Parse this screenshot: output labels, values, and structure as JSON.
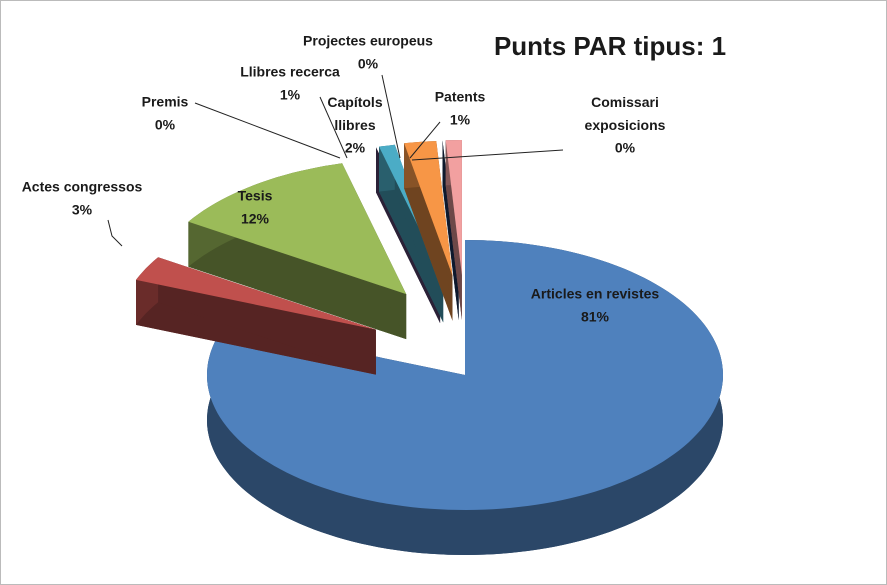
{
  "chart_data": {
    "type": "pie",
    "title": "Punts PAR tipus: 1",
    "categories": [
      "Articles en revistes",
      "Actes congressos",
      "Tesis",
      "Premis",
      "Llibres recerca",
      "Capítols llibres",
      "Projectes europeus",
      "Patents",
      "Comissari exposicions"
    ],
    "values": [
      81,
      3,
      12,
      0,
      1,
      2,
      0,
      1,
      0
    ],
    "value_labels": [
      "81%",
      "3%",
      "12%",
      "0%",
      "1%",
      "2%",
      "0%",
      "1%",
      "0%"
    ],
    "colors": [
      "#4f81bd",
      "#c0504d",
      "#9bbb59",
      "#604a7b",
      "#4bacc6",
      "#f79646",
      "#1f3864",
      "#f2a0a0",
      "#bfbfbf"
    ]
  }
}
